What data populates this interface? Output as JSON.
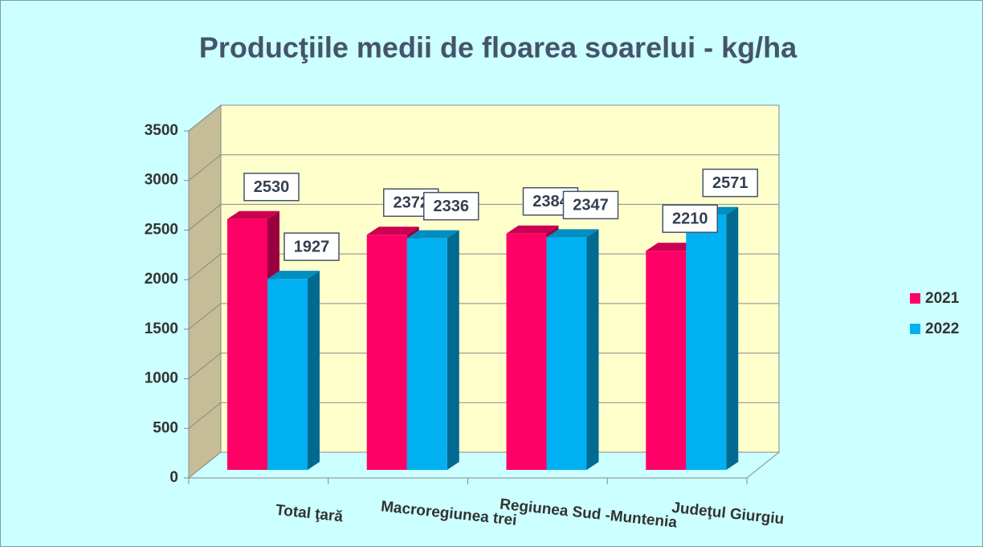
{
  "chart_data": {
    "type": "bar3d",
    "title": "Producţiile medii de floarea soarelui - kg/ha",
    "categories": [
      "Total ţară",
      "Macroregiunea trei",
      "Regiunea Sud -Muntenia",
      "Judeţul Giurgiu"
    ],
    "series": [
      {
        "name": "2021",
        "color": "#ff0066",
        "values": [
          2530,
          2372,
          2384,
          2210
        ]
      },
      {
        "name": "2022",
        "color": "#00b0f0",
        "values": [
          1927,
          2336,
          2347,
          2571
        ]
      }
    ],
    "ylim": [
      0,
      3500
    ],
    "yticks": [
      0,
      500,
      1000,
      1500,
      2000,
      2500,
      3000,
      3500
    ],
    "grid": true,
    "legend": "right"
  }
}
